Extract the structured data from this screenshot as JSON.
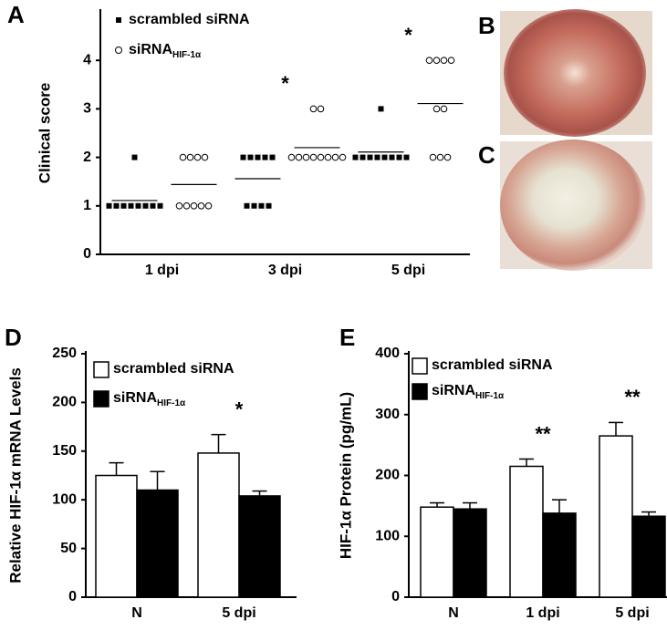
{
  "images": [
    {
      "panel": "B"
    },
    {
      "panel": "C"
    }
  ],
  "chart_data": [
    {
      "panel": "A",
      "type": "dotplot",
      "ylabel": "Clinical score",
      "categories": [
        "1 dpi",
        "3 dpi",
        "5 dpi"
      ],
      "series": [
        {
          "name": "scrambled siRNA",
          "marker": "square",
          "color": "#000000",
          "values": [
            [
              1,
              1,
              1,
              1,
              1,
              1,
              1,
              1,
              2
            ],
            [
              2,
              2,
              2,
              2,
              2,
              1,
              1,
              1,
              1
            ],
            [
              3,
              2,
              2,
              2,
              2,
              2,
              2,
              2,
              2
            ]
          ],
          "means": [
            1.11,
            1.56,
            2.11
          ]
        },
        {
          "name": "siRNA",
          "subscript": "HIF-1α",
          "marker": "circle",
          "color": "#000000",
          "values": [
            [
              2,
              2,
              2,
              2,
              1,
              1,
              1,
              1,
              1
            ],
            [
              3,
              3,
              2,
              2,
              2,
              2,
              2,
              2,
              2,
              2
            ],
            [
              4,
              4,
              4,
              4,
              3,
              3,
              2,
              2,
              2
            ]
          ],
          "means": [
            1.44,
            2.2,
            3.11
          ]
        }
      ],
      "annotations": [
        null,
        "*",
        "*"
      ],
      "ylim": [
        0,
        5
      ],
      "yticks": [
        0,
        1,
        2,
        3,
        4
      ],
      "legend": "top-left"
    },
    {
      "panel": "D",
      "type": "bar",
      "ylabel": "Relative HIF-1α mRNA Levels",
      "categories": [
        "N",
        "5 dpi"
      ],
      "series": [
        {
          "name": "scrambled siRNA",
          "color": "#ffffff",
          "values": [
            125,
            148
          ],
          "errors": [
            13,
            19
          ]
        },
        {
          "name": "siRNA",
          "subscript": "HIF-1α",
          "color": "#000000",
          "values": [
            110,
            104
          ],
          "errors": [
            19,
            5
          ]
        }
      ],
      "annotations": [
        null,
        "*"
      ],
      "ylim": [
        0,
        250
      ],
      "yticks": [
        0,
        50,
        100,
        150,
        200,
        250
      ],
      "legend": "top-left"
    },
    {
      "panel": "E",
      "type": "bar",
      "ylabel": "HIF-1α Protein (pg/mL)",
      "categories": [
        "N",
        "1 dpi",
        "5 dpi"
      ],
      "series": [
        {
          "name": "scrambled siRNA",
          "color": "#ffffff",
          "values": [
            148,
            215,
            265
          ],
          "errors": [
            7,
            12,
            22
          ]
        },
        {
          "name": "siRNA",
          "subscript": "HIF-1α",
          "color": "#000000",
          "values": [
            145,
            138,
            133
          ],
          "errors": [
            10,
            22,
            7
          ]
        }
      ],
      "annotations": [
        null,
        "**",
        "**"
      ],
      "ylim": [
        0,
        400
      ],
      "yticks": [
        0,
        100,
        200,
        300,
        400
      ],
      "legend": "top-left"
    }
  ]
}
